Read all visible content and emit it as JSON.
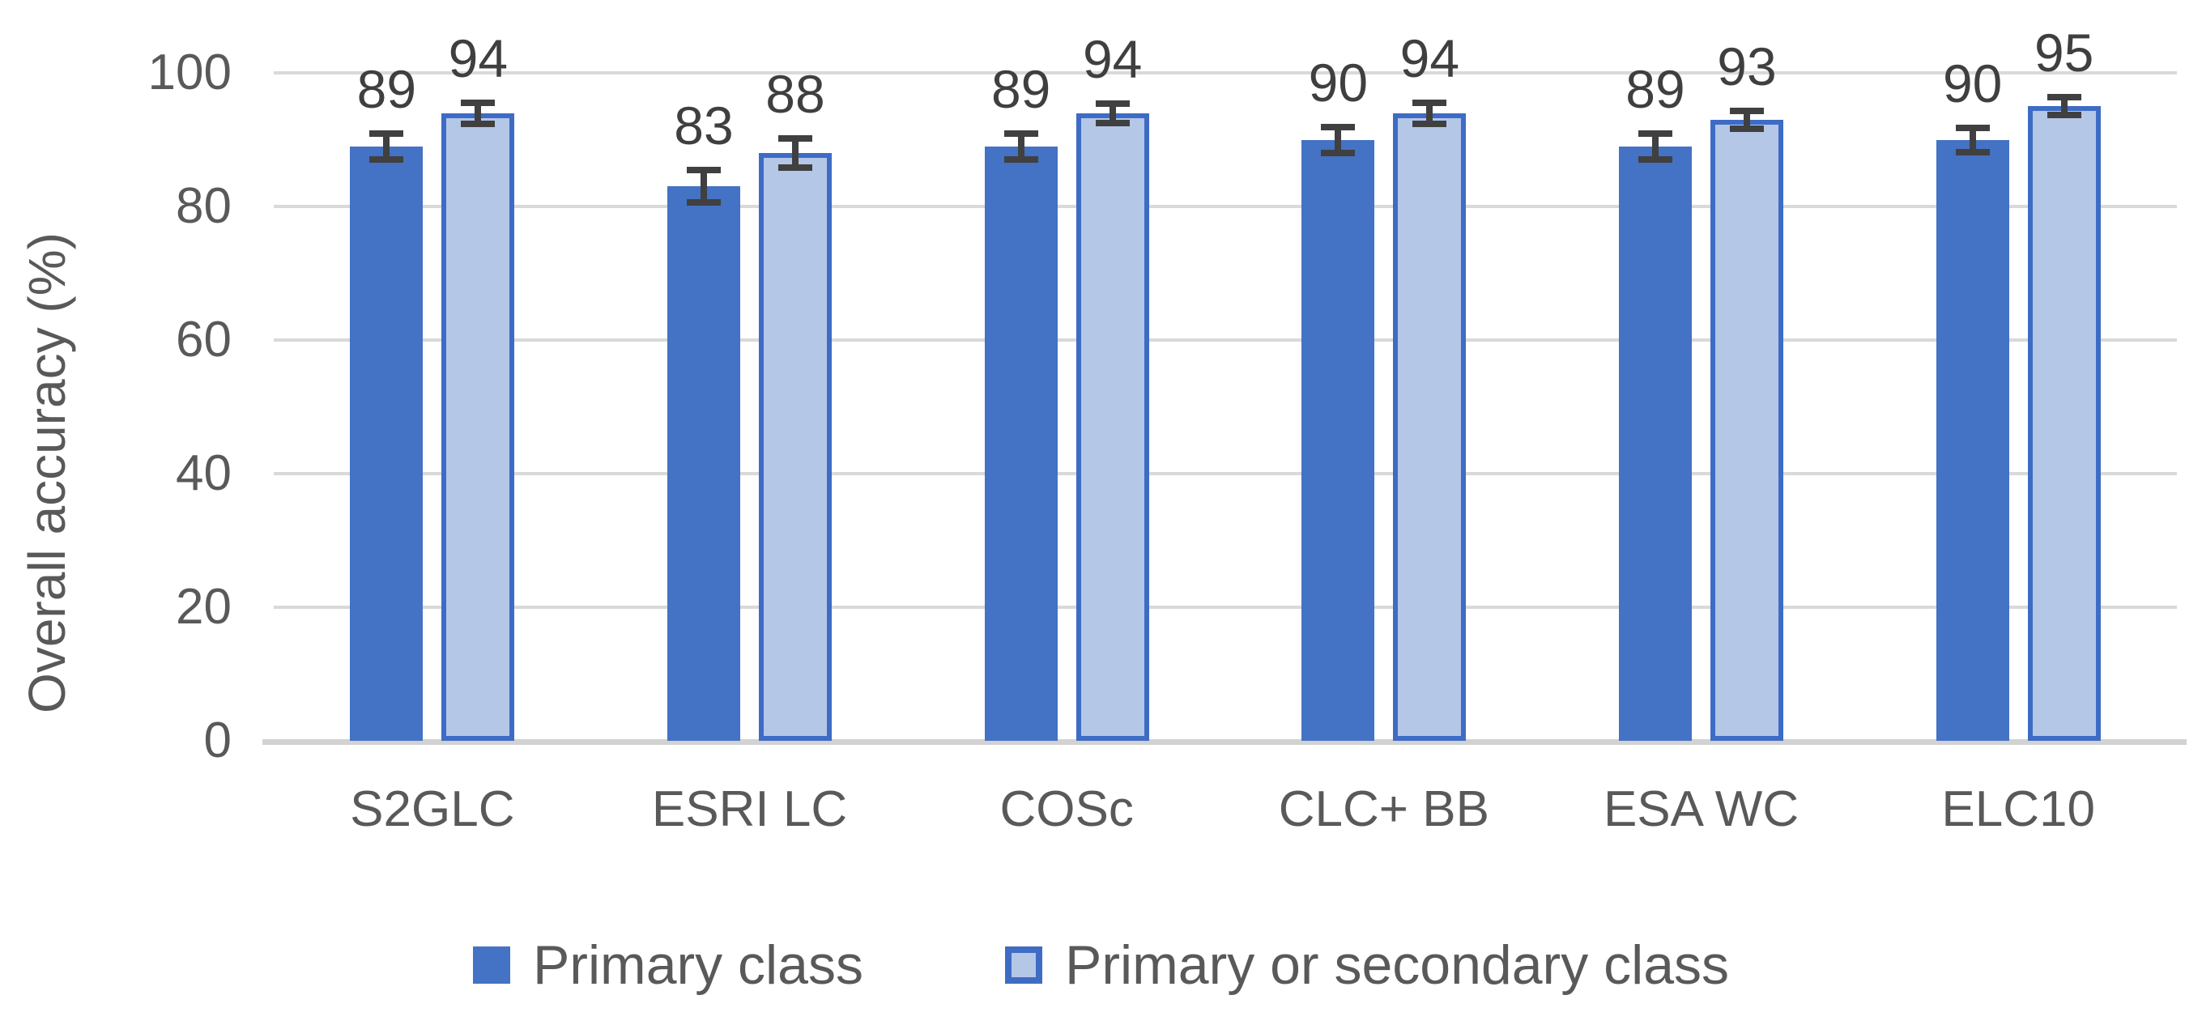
{
  "chart_data": {
    "type": "bar",
    "categories": [
      "S2GLC",
      "ESRI LC",
      "COSc",
      "CLC+ BB",
      "ESA WC",
      "ELC10"
    ],
    "series": [
      {
        "name": "Primary class",
        "values": [
          89,
          83,
          89,
          90,
          89,
          90
        ],
        "errors": [
          1.9,
          2.4,
          1.9,
          1.9,
          1.9,
          1.8
        ]
      },
      {
        "name": "Primary or secondary class",
        "values": [
          94,
          88,
          94,
          94,
          93,
          95
        ],
        "errors": [
          1.6,
          2.2,
          1.5,
          1.6,
          1.3,
          1.3
        ]
      }
    ],
    "ylabel": "Overall accuracy (%)",
    "ylim": [
      0,
      100
    ],
    "yticks": [
      0,
      20,
      40,
      60,
      80,
      100
    ],
    "grid": true,
    "error_bars": true,
    "data_labels_shown": true,
    "legend_position": "bottom"
  },
  "colors": {
    "series1_fill": "#4472C4",
    "series2_fill": "#B4C7E7",
    "series2_border": "#3E6CC5",
    "gridline": "#D9D9D9",
    "axis_line": "#D2D2D2",
    "error_bar": "#404040",
    "text": "#595959",
    "data_label": "#3F3F3F"
  }
}
